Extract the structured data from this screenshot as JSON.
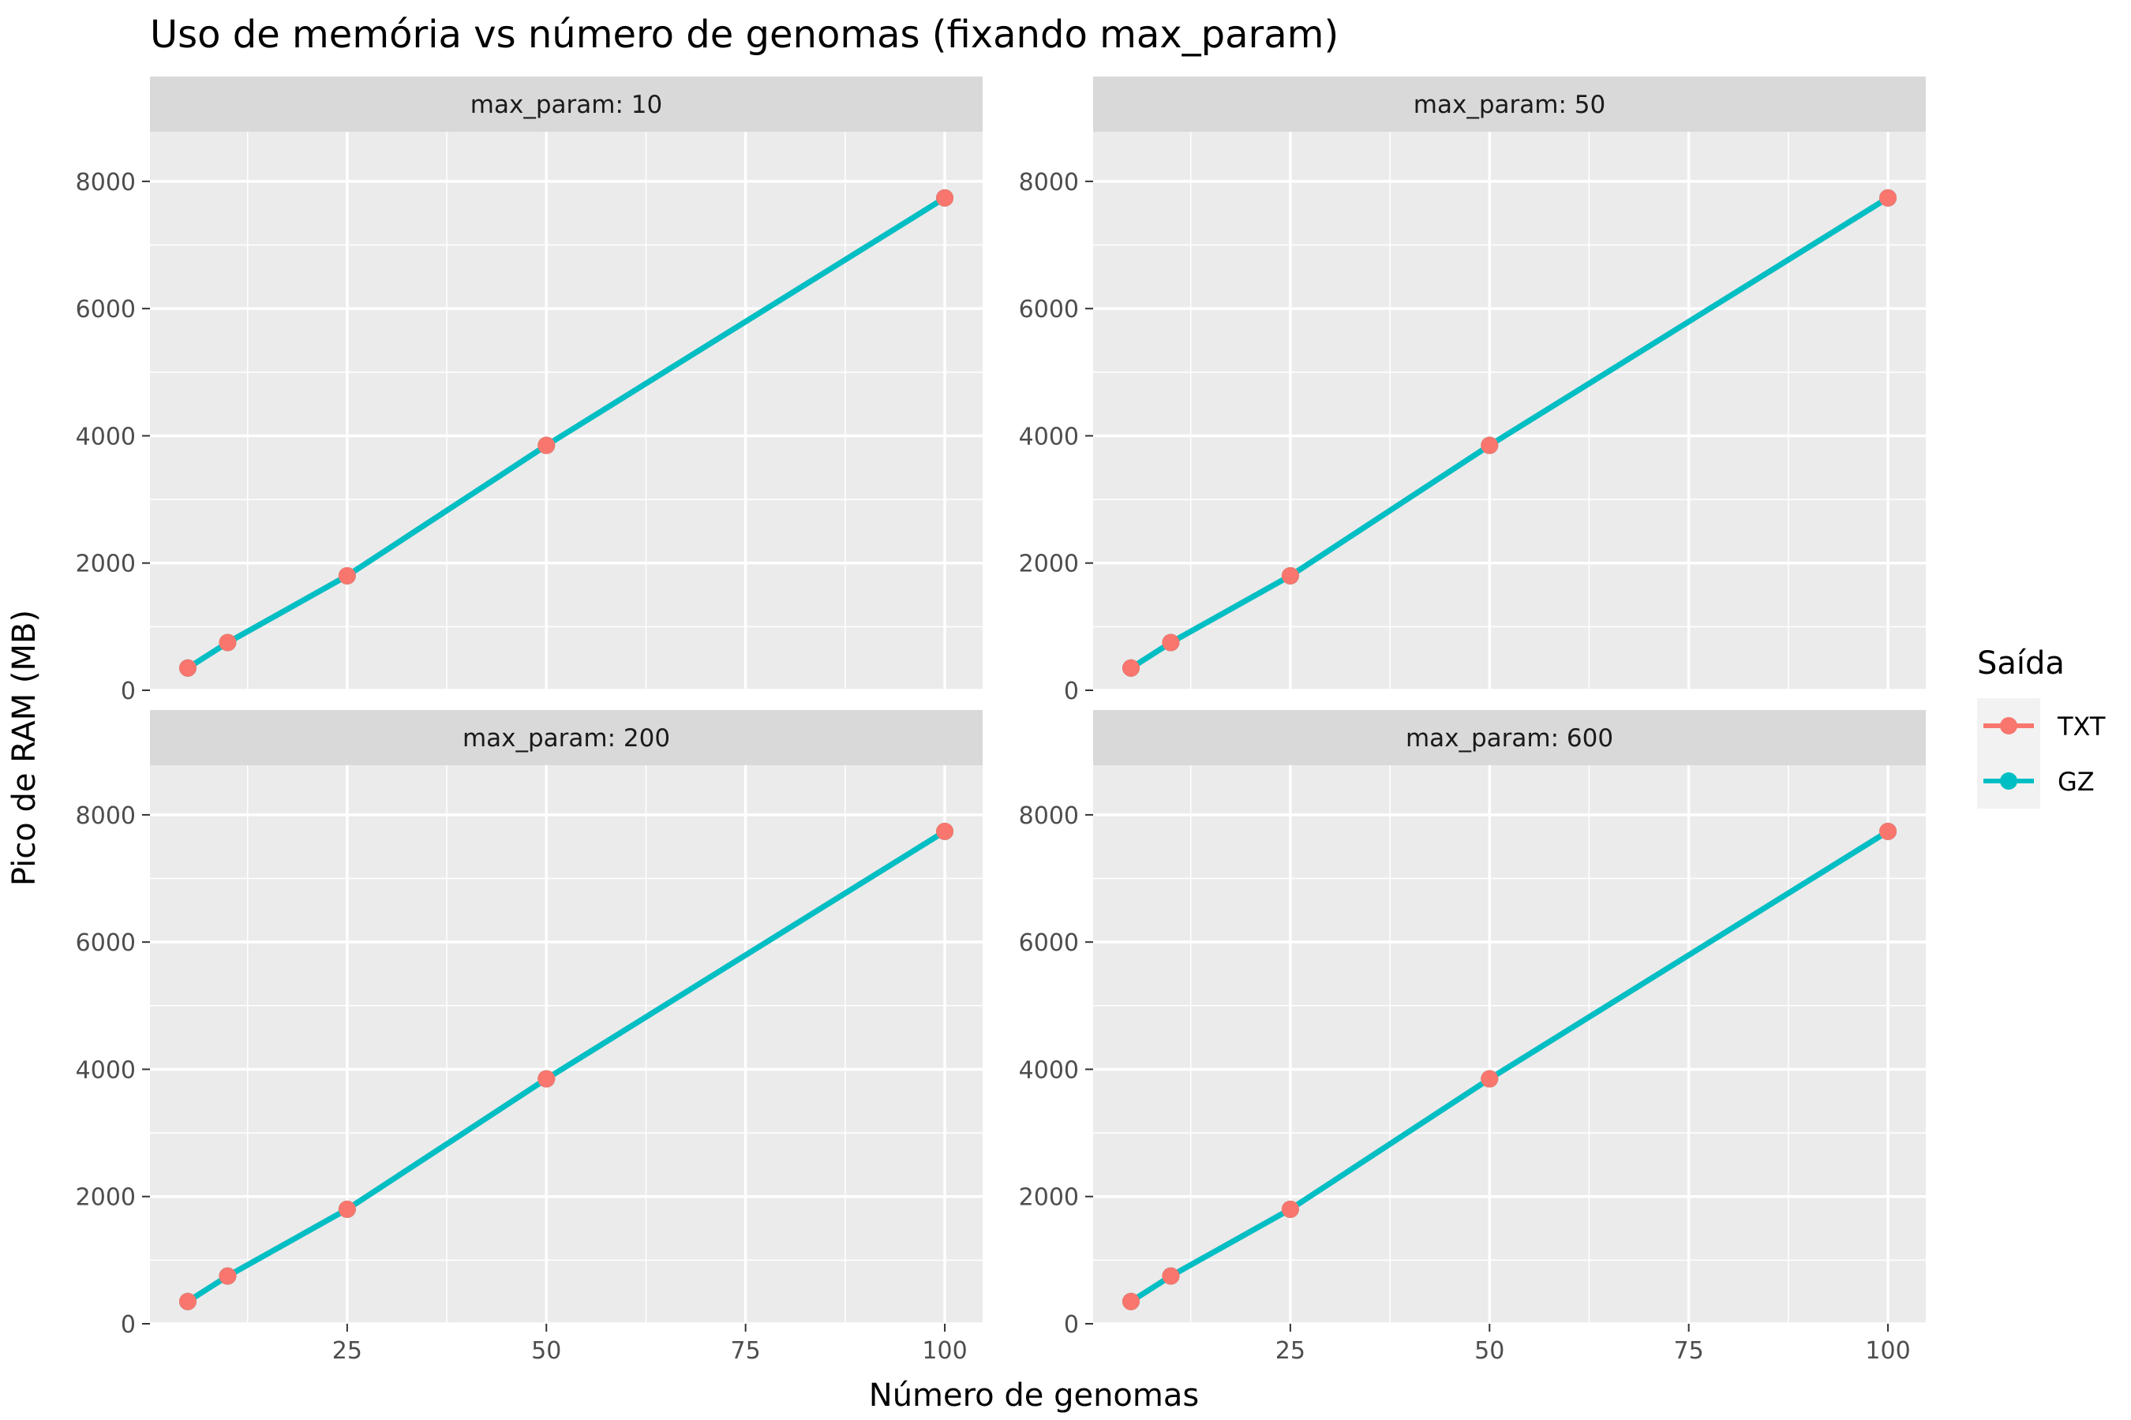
{
  "chart_data": {
    "type": "line",
    "title": "Uso de memória vs número de genomas (fixando max_param)",
    "xlabel": "Número de genomas",
    "ylabel": "Pico de RAM (MB)",
    "x_ticks": [
      25,
      50,
      75,
      100
    ],
    "y_ticks": [
      0,
      2000,
      4000,
      6000,
      8000
    ],
    "xlim": [
      0.25,
      104.75
    ],
    "ylim": [
      0,
      8780
    ],
    "grid": true,
    "legend": {
      "title": "Saída",
      "placement": "right",
      "entries": [
        {
          "name": "TXT",
          "color": "#F8766D"
        },
        {
          "name": "GZ",
          "color": "#00BFC4"
        }
      ]
    },
    "panels": [
      {
        "label": "max_param: 10",
        "series": [
          {
            "name": "TXT",
            "color": "#F8766D",
            "x": [
              5,
              10,
              25,
              50,
              100
            ],
            "y": [
              350,
              750,
              1800,
              3850,
              7740
            ]
          },
          {
            "name": "GZ",
            "color": "#00BFC4",
            "x": [
              5,
              10,
              25,
              50,
              100
            ],
            "y": [
              350,
              750,
              1800,
              3850,
              7740
            ]
          }
        ]
      },
      {
        "label": "max_param: 50",
        "series": [
          {
            "name": "TXT",
            "color": "#F8766D",
            "x": [
              5,
              10,
              25,
              50,
              100
            ],
            "y": [
              350,
              750,
              1800,
              3850,
              7740
            ]
          },
          {
            "name": "GZ",
            "color": "#00BFC4",
            "x": [
              5,
              10,
              25,
              50,
              100
            ],
            "y": [
              350,
              750,
              1800,
              3850,
              7740
            ]
          }
        ]
      },
      {
        "label": "max_param: 200",
        "series": [
          {
            "name": "TXT",
            "color": "#F8766D",
            "x": [
              5,
              10,
              25,
              50,
              100
            ],
            "y": [
              350,
              750,
              1800,
              3850,
              7740
            ]
          },
          {
            "name": "GZ",
            "color": "#00BFC4",
            "x": [
              5,
              10,
              25,
              50,
              100
            ],
            "y": [
              350,
              750,
              1800,
              3850,
              7740
            ]
          }
        ]
      },
      {
        "label": "max_param: 600",
        "series": [
          {
            "name": "TXT",
            "color": "#F8766D",
            "x": [
              5,
              10,
              25,
              50,
              100
            ],
            "y": [
              350,
              750,
              1800,
              3850,
              7740
            ]
          },
          {
            "name": "GZ",
            "color": "#00BFC4",
            "x": [
              5,
              10,
              25,
              50,
              100
            ],
            "y": [
              350,
              750,
              1800,
              3850,
              7740
            ]
          }
        ]
      }
    ]
  }
}
